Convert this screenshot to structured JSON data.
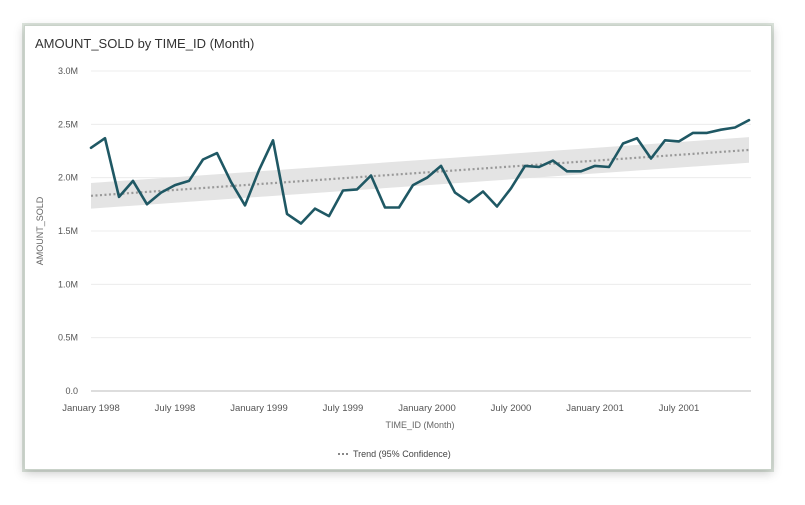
{
  "chart_data": {
    "type": "line",
    "title": "AMOUNT_SOLD by TIME_ID (Month)",
    "xlabel": "TIME_ID (Month)",
    "ylabel": "AMOUNT_SOLD",
    "ylim": [
      0,
      3000000
    ],
    "y_ticks": [
      0,
      500000,
      1000000,
      1500000,
      2000000,
      2500000,
      3000000
    ],
    "y_tick_labels": [
      "0.0",
      "0.5M",
      "1.0M",
      "1.5M",
      "2.0M",
      "2.5M",
      "3.0M"
    ],
    "x_range": [
      "January 1998",
      "December 2001"
    ],
    "x_tick_labels": [
      "January 1998",
      "July 1998",
      "January 1999",
      "July 1999",
      "January 2000",
      "July 2000",
      "January 2001",
      "July 2001"
    ],
    "x_tick_positions": [
      0,
      6,
      12,
      18,
      24,
      30,
      36,
      42
    ],
    "grid": "horizontal",
    "line_color": "#1f5864",
    "series": [
      {
        "values": [
          2280000,
          2370000,
          1820000,
          1970000,
          1750000,
          1860000,
          1930000,
          1970000,
          2170000,
          2230000,
          1960000,
          1740000,
          2070000,
          2350000,
          1660000,
          1570000,
          1710000,
          1640000,
          1880000,
          1890000,
          2020000,
          1720000,
          1720000,
          1930000,
          2000000,
          2110000,
          1860000,
          1770000,
          1870000,
          1730000,
          1900000,
          2110000,
          2100000,
          2160000,
          2060000,
          2060000,
          2110000,
          2100000,
          2320000,
          2370000,
          2180000,
          2350000,
          2340000,
          2420000,
          2420000,
          2450000,
          2470000,
          2540000
        ]
      }
    ],
    "trend": {
      "label": "Trend (95% Confidence)",
      "start": 1830000,
      "end": 2260000,
      "band_start": [
        1710000,
        1950000
      ],
      "band_end": [
        2140000,
        2380000
      ],
      "line_color": "#999999",
      "band_color": "#e4e4e4"
    },
    "legend_position": "bottom-center"
  }
}
